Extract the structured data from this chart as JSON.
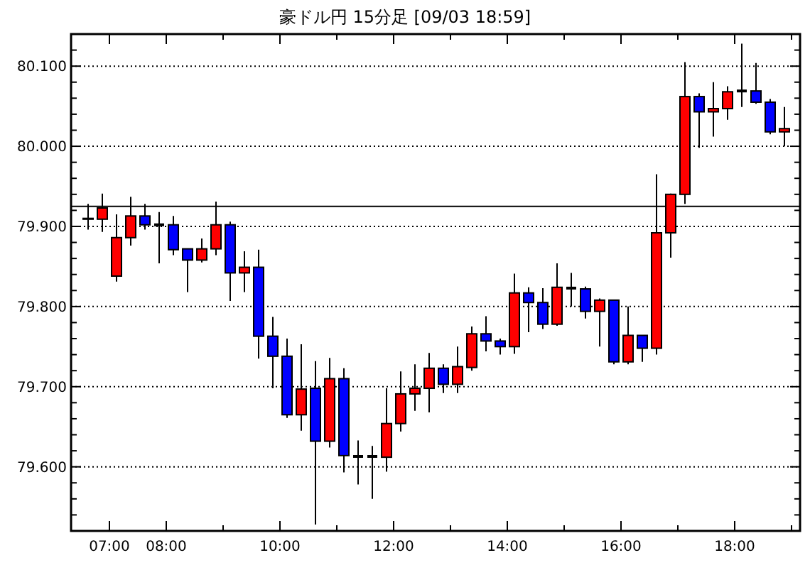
{
  "chart_data": {
    "type": "candlestick",
    "title": "豪ドル円 15分足 [09/03 18:59]",
    "x": [
      6.625,
      6.875,
      7.125,
      7.375,
      7.625,
      7.875,
      8.125,
      8.375,
      8.625,
      8.875,
      9.125,
      9.375,
      9.625,
      9.875,
      10.125,
      10.375,
      10.625,
      10.875,
      11.125,
      11.375,
      11.625,
      11.875,
      12.125,
      12.375,
      12.625,
      12.875,
      13.125,
      13.375,
      13.625,
      13.875,
      14.125,
      14.375,
      14.625,
      14.875,
      15.125,
      15.375,
      15.625,
      15.875,
      16.125,
      16.375,
      16.625,
      16.875,
      17.125,
      17.375,
      17.625,
      17.875,
      18.125,
      18.375,
      18.625,
      18.875
    ],
    "ohlc": [
      [
        79.909,
        79.928,
        79.896,
        79.91
      ],
      [
        79.909,
        79.941,
        79.893,
        79.923
      ],
      [
        79.838,
        79.915,
        79.831,
        79.886
      ],
      [
        79.886,
        79.937,
        79.876,
        79.913
      ],
      [
        79.913,
        79.928,
        79.896,
        79.902
      ],
      [
        79.902,
        79.918,
        79.854,
        79.902
      ],
      [
        79.902,
        79.913,
        79.864,
        79.871
      ],
      [
        79.872,
        79.872,
        79.818,
        79.858
      ],
      [
        79.858,
        79.885,
        79.855,
        79.872
      ],
      [
        79.872,
        79.931,
        79.864,
        79.902
      ],
      [
        79.902,
        79.906,
        79.807,
        79.842
      ],
      [
        79.842,
        79.869,
        79.818,
        79.849
      ],
      [
        79.849,
        79.871,
        79.735,
        79.763
      ],
      [
        79.763,
        79.787,
        79.698,
        79.738
      ],
      [
        79.738,
        79.76,
        79.661,
        79.665
      ],
      [
        79.665,
        79.753,
        79.645,
        79.697
      ],
      [
        79.698,
        79.732,
        79.528,
        79.632
      ],
      [
        79.632,
        79.736,
        79.624,
        79.71
      ],
      [
        79.71,
        79.723,
        79.593,
        79.614
      ],
      [
        79.613,
        79.633,
        79.578,
        79.613
      ],
      [
        79.613,
        79.626,
        79.56,
        79.613
      ],
      [
        79.612,
        79.698,
        79.594,
        79.654
      ],
      [
        79.654,
        79.719,
        79.644,
        79.691
      ],
      [
        79.691,
        79.728,
        79.67,
        79.698
      ],
      [
        79.698,
        79.742,
        79.668,
        79.723
      ],
      [
        79.723,
        79.728,
        79.692,
        79.703
      ],
      [
        79.703,
        79.75,
        79.692,
        79.725
      ],
      [
        79.724,
        79.775,
        79.72,
        79.766
      ],
      [
        79.766,
        79.788,
        79.744,
        79.757
      ],
      [
        79.757,
        79.76,
        79.74,
        79.75
      ],
      [
        79.75,
        79.841,
        79.741,
        79.817
      ],
      [
        79.817,
        79.824,
        79.768,
        79.805
      ],
      [
        79.805,
        79.823,
        79.772,
        79.778
      ],
      [
        79.778,
        79.854,
        79.776,
        79.824
      ],
      [
        79.823,
        79.842,
        79.8,
        79.823
      ],
      [
        79.822,
        79.825,
        79.785,
        79.794
      ],
      [
        79.794,
        79.81,
        79.75,
        79.808
      ],
      [
        79.808,
        79.808,
        79.728,
        79.731
      ],
      [
        79.731,
        79.8,
        79.728,
        79.764
      ],
      [
        79.764,
        79.764,
        79.731,
        79.748
      ],
      [
        79.748,
        79.965,
        79.74,
        79.892
      ],
      [
        79.892,
        79.941,
        79.861,
        79.94
      ],
      [
        79.94,
        80.105,
        79.928,
        80.062
      ],
      [
        80.062,
        80.066,
        79.998,
        80.043
      ],
      [
        80.043,
        80.08,
        80.012,
        80.047
      ],
      [
        80.047,
        80.075,
        80.033,
        80.068
      ],
      [
        80.069,
        80.128,
        80.049,
        80.069
      ],
      [
        80.069,
        80.104,
        80.053,
        80.055
      ],
      [
        80.055,
        80.059,
        80.015,
        80.018
      ],
      [
        80.018,
        80.049,
        80.0,
        80.022
      ]
    ],
    "colors": [
      "#ff0000",
      "#ff0000",
      "#ff0000",
      "#ff0000",
      "#0000ff",
      "#000000",
      "#0000ff",
      "#0000ff",
      "#ff0000",
      "#ff0000",
      "#0000ff",
      "#ff0000",
      "#0000ff",
      "#0000ff",
      "#0000ff",
      "#ff0000",
      "#0000ff",
      "#ff0000",
      "#0000ff",
      "#000000",
      "#000000",
      "#ff0000",
      "#ff0000",
      "#ff0000",
      "#ff0000",
      "#0000ff",
      "#ff0000",
      "#ff0000",
      "#0000ff",
      "#0000ff",
      "#ff0000",
      "#0000ff",
      "#0000ff",
      "#ff0000",
      "#000000",
      "#0000ff",
      "#ff0000",
      "#0000ff",
      "#ff0000",
      "#0000ff",
      "#ff0000",
      "#ff0000",
      "#ff0000",
      "#0000ff",
      "#ff0000",
      "#ff0000",
      "#000000",
      "#0000ff",
      "#0000ff",
      "#ff0000"
    ],
    "xlim": [
      6.325,
      19.15
    ],
    "xticks": [
      {
        "value": 7,
        "label": "07:00"
      },
      {
        "value": 8,
        "label": "08:00"
      },
      {
        "value": 9,
        "label": null
      },
      {
        "value": 10,
        "label": "10:00"
      },
      {
        "value": 11,
        "label": null
      },
      {
        "value": 12,
        "label": "12:00"
      },
      {
        "value": 13,
        "label": null
      },
      {
        "value": 14,
        "label": "14:00"
      },
      {
        "value": 15,
        "label": null
      },
      {
        "value": 16,
        "label": "16:00"
      },
      {
        "value": 17,
        "label": null
      },
      {
        "value": 18,
        "label": "18:00"
      },
      {
        "value": 19,
        "label": null
      }
    ],
    "ylim": [
      79.52,
      80.14
    ],
    "yticks": [
      {
        "value": 79.52,
        "label": null
      },
      {
        "value": 79.54,
        "label": null
      },
      {
        "value": 79.56,
        "label": null
      },
      {
        "value": 79.58,
        "label": null
      },
      {
        "value": 79.6,
        "label": "79.600"
      },
      {
        "value": 79.62,
        "label": null
      },
      {
        "value": 79.64,
        "label": null
      },
      {
        "value": 79.66,
        "label": null
      },
      {
        "value": 79.68,
        "label": null
      },
      {
        "value": 79.7,
        "label": "79.700"
      },
      {
        "value": 79.72,
        "label": null
      },
      {
        "value": 79.74,
        "label": null
      },
      {
        "value": 79.76,
        "label": null
      },
      {
        "value": 79.78,
        "label": null
      },
      {
        "value": 79.8,
        "label": "79.800"
      },
      {
        "value": 79.82,
        "label": null
      },
      {
        "value": 79.84,
        "label": null
      },
      {
        "value": 79.86,
        "label": null
      },
      {
        "value": 79.88,
        "label": null
      },
      {
        "value": 79.9,
        "label": "79.900"
      },
      {
        "value": 79.92,
        "label": null
      },
      {
        "value": 79.94,
        "label": null
      },
      {
        "value": 79.96,
        "label": null
      },
      {
        "value": 79.98,
        "label": null
      },
      {
        "value": 80.0,
        "label": "80.000"
      },
      {
        "value": 80.02,
        "label": null
      },
      {
        "value": 80.04,
        "label": null
      },
      {
        "value": 80.06,
        "label": null
      },
      {
        "value": 80.08,
        "label": null
      },
      {
        "value": 80.1,
        "label": "80.100"
      },
      {
        "value": 80.12,
        "label": null
      }
    ],
    "grid": "y",
    "ref_lines": [
      {
        "axis": "y",
        "value": 79.925,
        "color": "#000000"
      }
    ]
  }
}
